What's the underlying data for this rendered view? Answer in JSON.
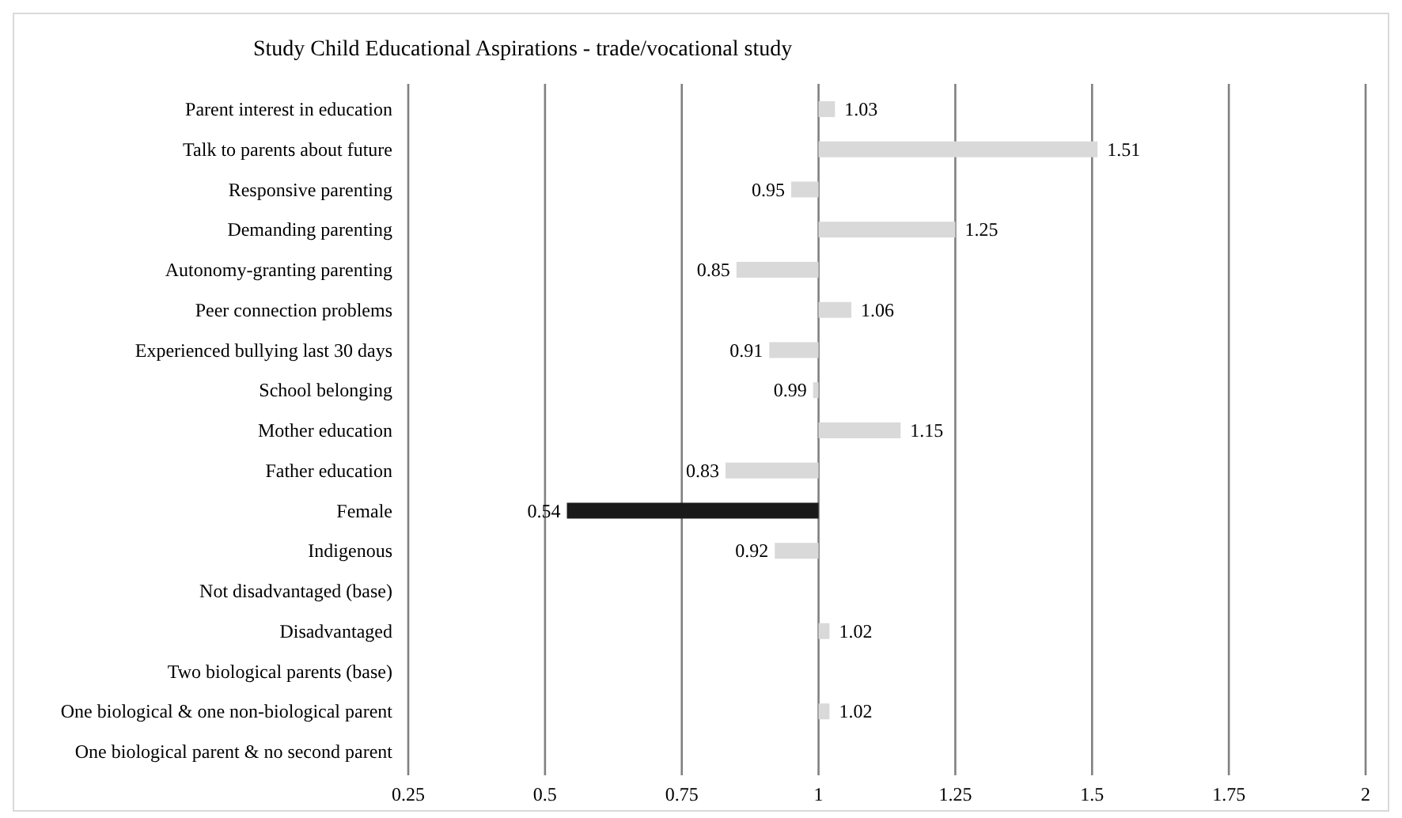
{
  "chart_data": {
    "type": "bar",
    "orientation": "horizontal",
    "title": "Study Child Educational Aspirations - trade/vocational study",
    "categories": [
      "Parent interest in education",
      "Talk to parents about future",
      "Responsive parenting",
      "Demanding parenting",
      "Autonomy-granting parenting",
      "Peer connection problems",
      "Experienced bullying last 30 days",
      "School belonging",
      "Mother education",
      "Father education",
      "Female",
      "Indigenous",
      "Not disadvantaged (base)",
      "Disadvantaged",
      "Two biological parents (base)",
      "One biological & one non-biological parent",
      "One biological parent & no second parent"
    ],
    "base": [
      1,
      1,
      1,
      1,
      1,
      1,
      1,
      1,
      1,
      1,
      1,
      1,
      null,
      1,
      null,
      1,
      null
    ],
    "values": [
      0.03,
      0.51,
      -0.05,
      0.25,
      -0.15,
      0.06,
      -0.09,
      -0.01,
      0.15,
      -0.17,
      -0.46,
      -0.08,
      null,
      0.02,
      null,
      0.02,
      null
    ],
    "value_labels": [
      "1.03",
      "1.51",
      "0.95",
      "1.25",
      "0.85",
      "1.06",
      "0.91",
      "0.99",
      "1.15",
      "0.83",
      "0.54",
      "0.92",
      null,
      "1.02",
      null,
      "1.02",
      null
    ],
    "colors": [
      "#d9d9d9",
      "#d9d9d9",
      "#d9d9d9",
      "#d9d9d9",
      "#d9d9d9",
      "#d9d9d9",
      "#d9d9d9",
      "#d9d9d9",
      "#d9d9d9",
      "#d9d9d9",
      "#1a1a1a",
      "#d9d9d9",
      null,
      "#d9d9d9",
      null,
      "#d9d9d9",
      null
    ],
    "xlim": [
      0.25,
      2
    ],
    "xticks": [
      0.25,
      0.5,
      0.75,
      1,
      1.25,
      1.5,
      1.75,
      2
    ],
    "grid": "x"
  }
}
